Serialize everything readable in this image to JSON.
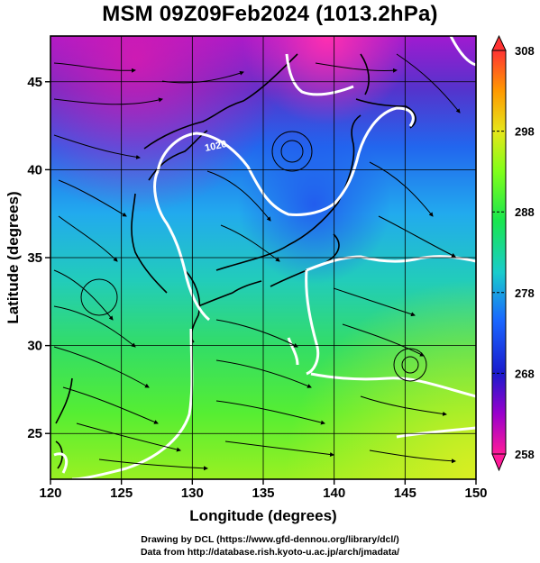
{
  "title": "MSM 09Z09Feb2024 (1013.2hPa)",
  "axes": {
    "xlabel": "Longitude (degrees)",
    "ylabel": "Latitude  (degrees)",
    "x_ticks": [
      120,
      125,
      130,
      135,
      140,
      145,
      150
    ],
    "y_ticks": [
      25,
      30,
      35,
      40,
      45
    ],
    "xlim": [
      120,
      150
    ],
    "ylim": [
      22.4,
      47.6
    ]
  },
  "colorbar": {
    "min": 258,
    "max": 308,
    "labels": [
      308,
      298,
      288,
      278,
      268,
      258
    ],
    "colors": [
      "#ff1a99",
      "#9900cc",
      "#1a1acc",
      "#1a66ff",
      "#1acccc",
      "#1ae64d",
      "#80ff1a",
      "#e6e61a",
      "#ff9900",
      "#ff3333"
    ]
  },
  "contour_label": "1020",
  "credits": {
    "line1": "Drawing by DCL (https://www.gfd-dennou.org/library/dcl/)",
    "line2": "Data from http://database.rish.kyoto-u.ac.jp/arch/jmadata/"
  }
}
